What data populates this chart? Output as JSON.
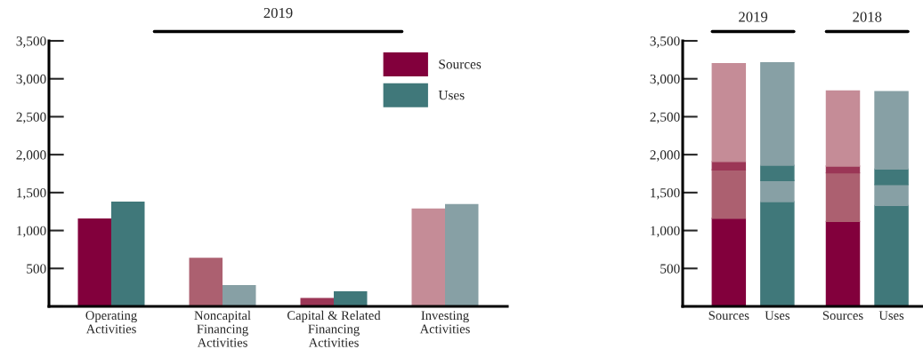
{
  "chart_data": [
    {
      "type": "bar",
      "title": "2019",
      "categories": [
        "Operating\nActivities",
        "Noncapital\nFinancing\nActivities",
        "Capital & Related\nFinancing\nActivities",
        "Investing\nActivities"
      ],
      "series": [
        {
          "name": "Sources",
          "color": "#82003c",
          "colors": [
            "#82003c",
            "#ac6070",
            "#9b3656",
            "#c58c97"
          ],
          "values": [
            1160,
            640,
            110,
            1290
          ]
        },
        {
          "name": "Uses",
          "color": "#40787a",
          "colors": [
            "#40787a",
            "#87a0a5",
            "#40787a",
            "#87a0a5"
          ],
          "values": [
            1380,
            280,
            200,
            1350
          ]
        }
      ],
      "ylim": [
        0,
        3500
      ],
      "yticks": [
        {
          "value": 0,
          "label": null
        },
        {
          "value": 500,
          "label": "500"
        },
        {
          "value": 1000,
          "label": "1,000"
        },
        {
          "value": 1500,
          "label": "1,500"
        },
        {
          "value": 2000,
          "label": "2,000"
        },
        {
          "value": 2500,
          "label": "2,500"
        },
        {
          "value": 3000,
          "label": "3,000"
        },
        {
          "value": 3500,
          "label": "3,500"
        }
      ],
      "grid": false,
      "legend": "top right"
    },
    {
      "type": "bar",
      "stacked": true,
      "categories": [
        "Sources",
        "Uses",
        "Sources",
        "Uses"
      ],
      "series": [
        {
          "colors": [
            "#82003c",
            "#40787a",
            "#82003c",
            "#40787a"
          ],
          "values": [
            1160,
            1380,
            1120,
            1330
          ]
        },
        {
          "colors": [
            "#ac6070",
            "#87a0a5",
            "#ac6070",
            "#87a0a5"
          ],
          "values": [
            640,
            280,
            640,
            275
          ]
        },
        {
          "colors": [
            "#9b3656",
            "#40787a",
            "#9b3656",
            "#40787a"
          ],
          "values": [
            110,
            200,
            90,
            205
          ]
        },
        {
          "colors": [
            "#c58c97",
            "#87a0a5",
            "#c58c97",
            "#87a0a5"
          ],
          "values": [
            1290,
            1350,
            990,
            1020
          ]
        }
      ],
      "annotations": [
        "2019",
        "2018"
      ],
      "ylim": [
        0,
        3500
      ],
      "yticks": [
        {
          "value": 0,
          "label": null
        },
        {
          "value": 500,
          "label": "500"
        },
        {
          "value": 1000,
          "label": "1,000"
        },
        {
          "value": 1500,
          "label": "1,500"
        },
        {
          "value": 2000,
          "label": "2,000"
        },
        {
          "value": 2500,
          "label": "2,500"
        },
        {
          "value": 3000,
          "label": "3,000"
        },
        {
          "value": 3500,
          "label": "3,500"
        }
      ],
      "grid": false
    }
  ]
}
